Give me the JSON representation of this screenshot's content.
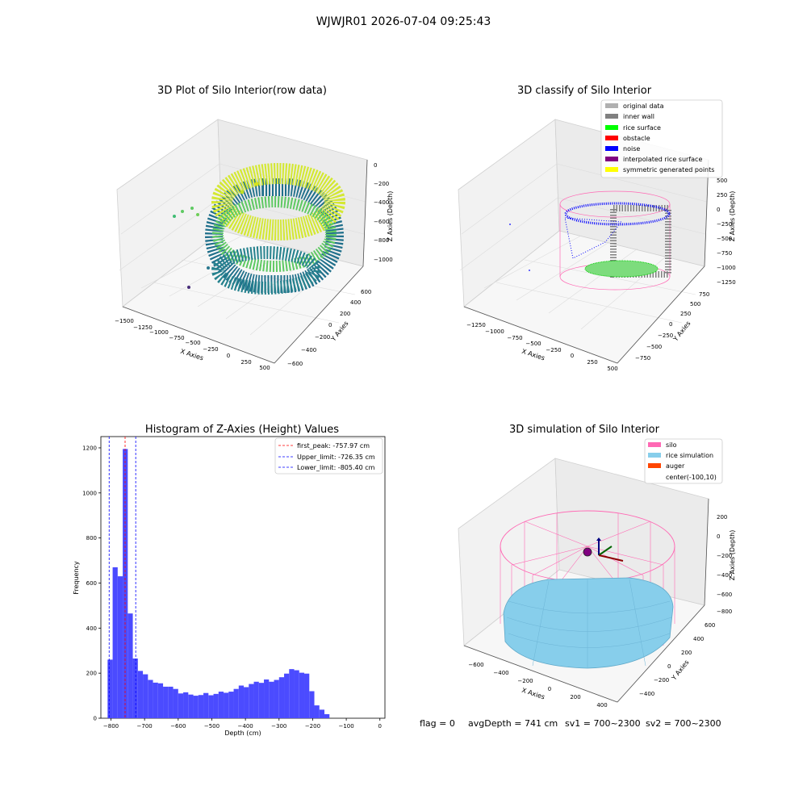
{
  "figure": {
    "suptitle": "WJWJR01 2026-07-04 09:25:43",
    "footer": {
      "flag": "flag = 0",
      "avg_depth": "avgDepth = 741 cm",
      "sv1": "sv1 = 700~2300",
      "sv2": "sv2 = 700~2300"
    }
  },
  "colors": {
    "original_data": "#b0b0b0",
    "inner_wall": "#808080",
    "rice_surface": "#00ff00",
    "obstacle": "#ff0000",
    "noise": "#0000ff",
    "interpolated_rice_surface": "#800080",
    "symmetric_generated_points": "#ffff00",
    "silo": "#ff69b4",
    "rice_simulation": "#87ceeb",
    "auger": "#ff4500",
    "hist_bar": "#4b4bff",
    "first_peak": "#ff0000",
    "limit": "#0000ff"
  },
  "panels": {
    "raw": {
      "title": "3D Plot of Silo Interior(row data)",
      "xlabel": "X Axies",
      "ylabel": "Y Axies",
      "zlabel": "Z Axies (Depth)",
      "xticks": [
        "−1500",
        "−1250",
        "−1000",
        "−750",
        "−500",
        "−250",
        "0",
        "250",
        "500"
      ],
      "yticks": [
        "−600",
        "−400",
        "−200",
        "0",
        "200",
        "400",
        "600"
      ],
      "zticks": [
        "0",
        "−200",
        "−400",
        "−600",
        "−800",
        "−1000"
      ]
    },
    "classify": {
      "title": "3D classify of Silo Interior",
      "xlabel": "X Axies",
      "ylabel": "Y Axies",
      "zlabel": "Z Axies (Depth)",
      "xticks": [
        "−1250",
        "−1000",
        "−750",
        "−500",
        "−250",
        "0",
        "250",
        "500"
      ],
      "yticks": [
        "−750",
        "−500",
        "−250",
        "0",
        "250",
        "500",
        "750"
      ],
      "zticks": [
        "500",
        "250",
        "0",
        "−250",
        "−500",
        "−750",
        "−1000",
        "−1250"
      ],
      "legend": [
        {
          "label": "original data",
          "color_key": "original_data"
        },
        {
          "label": "inner wall",
          "color_key": "inner_wall"
        },
        {
          "label": "rice surface",
          "color_key": "rice_surface"
        },
        {
          "label": "obstacle",
          "color_key": "obstacle"
        },
        {
          "label": "noise",
          "color_key": "noise"
        },
        {
          "label": "interpolated rice surface",
          "color_key": "interpolated_rice_surface"
        },
        {
          "label": "symmetric generated points",
          "color_key": "symmetric_generated_points"
        }
      ]
    },
    "simulation": {
      "title": "3D simulation of Silo Interior",
      "xlabel": "X Axies",
      "ylabel": "Y Axies",
      "zlabel": "Z Axies (Depth)",
      "xticks": [
        "−600",
        "−400",
        "−200",
        "0",
        "200",
        "400"
      ],
      "yticks": [
        "−400",
        "−200",
        "0",
        "200",
        "400",
        "600"
      ],
      "zticks": [
        "200",
        "0",
        "−200",
        "−400",
        "−600",
        "−800"
      ],
      "legend": [
        {
          "label": "silo",
          "color_key": "silo"
        },
        {
          "label": "rice simulation",
          "color_key": "rice_simulation"
        },
        {
          "label": "auger",
          "color_key": "auger"
        },
        {
          "label": "center(-100,10)",
          "color_key": ""
        }
      ]
    }
  },
  "chart_data": {
    "type": "bar",
    "title": "Histogram of Z-Axies (Height) Values",
    "xlabel": "Depth (cm)",
    "ylabel": "Frequency",
    "xlim": [
      -830,
      15
    ],
    "ylim": [
      0,
      1250
    ],
    "xticks": [
      -800,
      -700,
      -600,
      -500,
      -400,
      -300,
      -200,
      -100,
      0
    ],
    "yticks": [
      0,
      200,
      400,
      600,
      800,
      1000,
      1200
    ],
    "bin_width": 15,
    "bin_start": -810,
    "values": [
      260,
      670,
      630,
      1195,
      465,
      265,
      210,
      195,
      170,
      158,
      155,
      140,
      140,
      130,
      110,
      115,
      105,
      100,
      103,
      112,
      102,
      108,
      118,
      113,
      118,
      130,
      145,
      138,
      152,
      162,
      157,
      172,
      162,
      170,
      182,
      198,
      218,
      213,
      202,
      198,
      120,
      57,
      38,
      18
    ],
    "vlines": [
      {
        "label": "first_peak: -757.97 cm",
        "x": -757.97,
        "color_key": "first_peak"
      },
      {
        "label": "Upper_limit: -726.35 cm",
        "x": -726.35,
        "color_key": "limit"
      },
      {
        "label": "Lower_limit: -805.40 cm",
        "x": -805.4,
        "color_key": "limit"
      }
    ],
    "legend_loc": "upper right",
    "grid": false
  }
}
